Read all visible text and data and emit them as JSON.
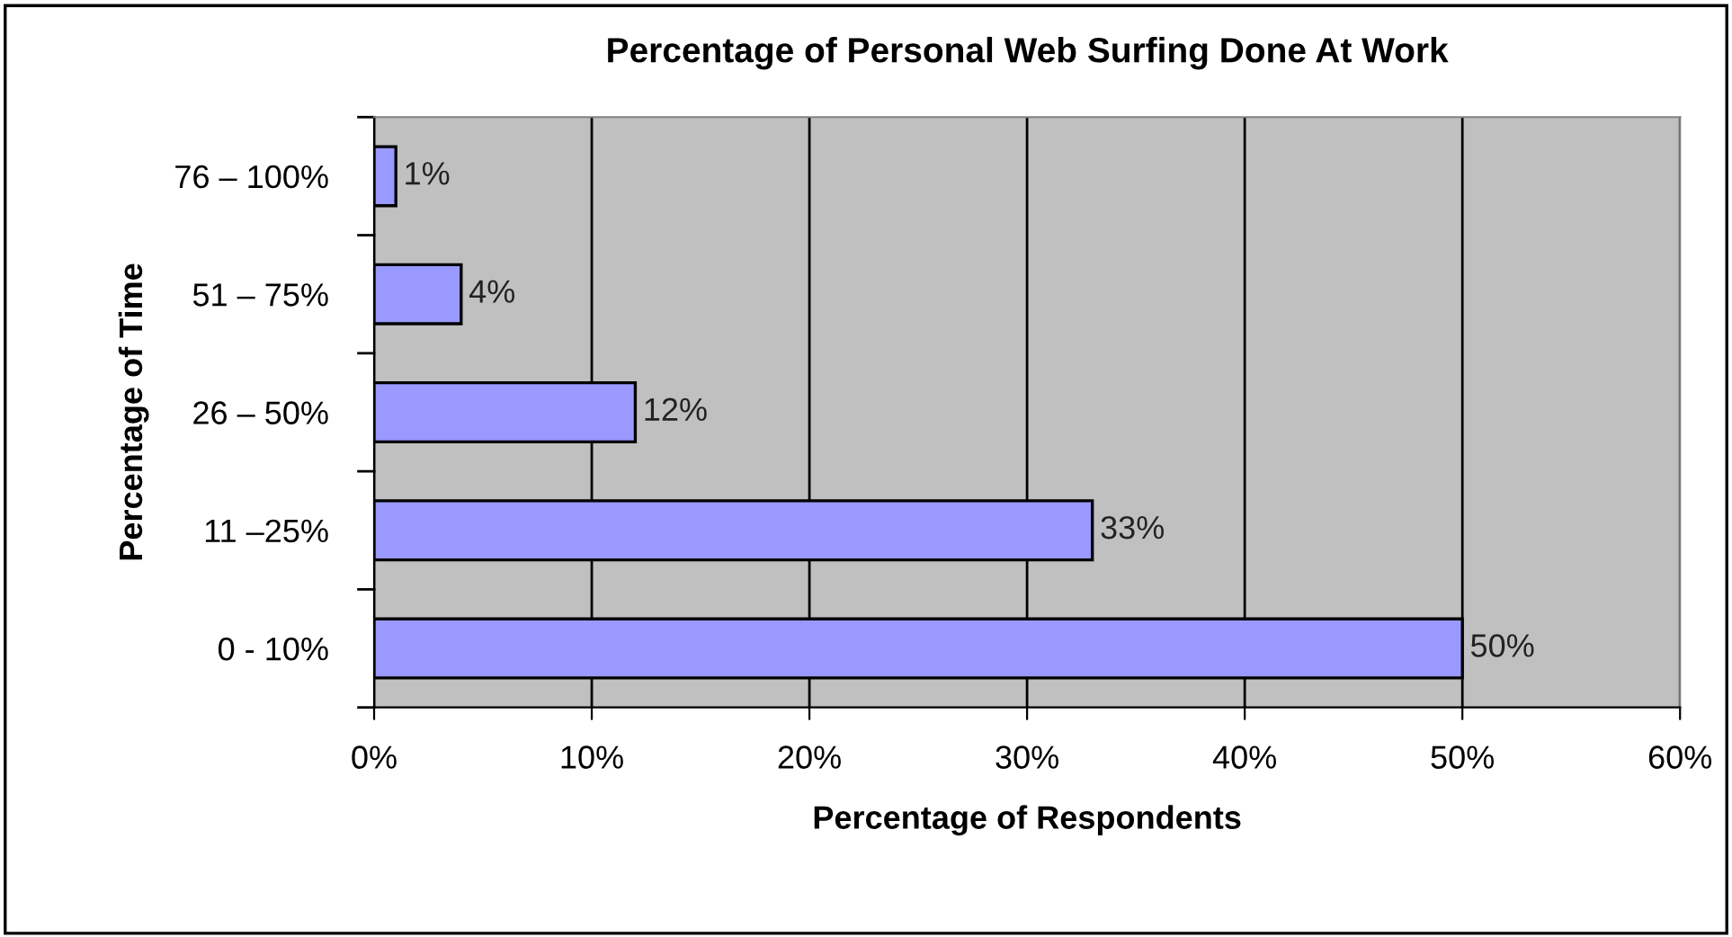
{
  "chart_data": {
    "type": "bar",
    "orientation": "horizontal",
    "title": "Percentage of Personal Web Surfing Done At Work",
    "xlabel": "Percentage of Respondents",
    "ylabel": "Percentage of Time",
    "categories": [
      "76 – 100%",
      "51 – 75%",
      "26 – 50%",
      "11 –25%",
      "0 - 10%"
    ],
    "values": [
      1,
      4,
      12,
      33,
      50
    ],
    "value_labels": [
      "1%",
      "4%",
      "12%",
      "33%",
      "50%"
    ],
    "color": "#9999ff",
    "xlim": [
      0,
      60
    ],
    "xticks": [
      {
        "value": 0,
        "label": "0%"
      },
      {
        "value": 10,
        "label": "10%"
      },
      {
        "value": 20,
        "label": "20%"
      },
      {
        "value": 30,
        "label": "30%"
      },
      {
        "value": 40,
        "label": "40%"
      },
      {
        "value": 50,
        "label": "50%"
      },
      {
        "value": 60,
        "label": "60%"
      }
    ],
    "grid": "x",
    "legend": false
  }
}
